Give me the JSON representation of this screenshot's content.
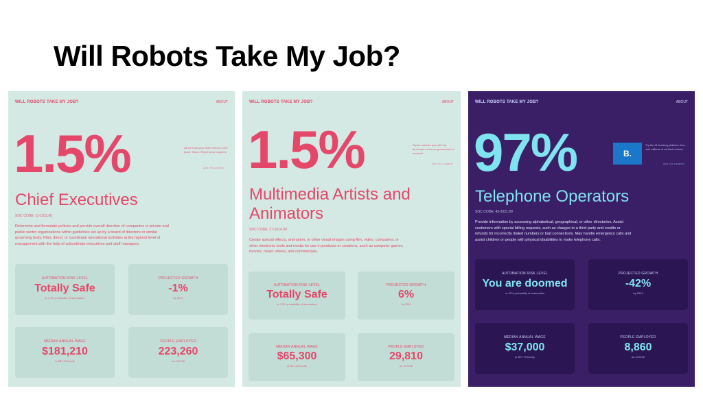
{
  "slide_title": "Will Robots Take My Job?",
  "panels": [
    {
      "brand": "WILL ROBOTS TAKE MY JOB?",
      "about": "ABOUT",
      "percent": "1.5%",
      "ad_text": "All the tools your team needs in one place. Slack: Where work happens.",
      "ad_link": "ADS VIA CARBON",
      "job_title": "Chief Executives",
      "soc_code": "SOC CODE: 11-1011.00",
      "description": "Determine and formulate policies and provide overall direction of companies or private and public sector organizations within guidelines set up by a board of directors or similar governing body. Plan, direct, or coordinate operational activities at the highest level of management with the help of subordinate executives and staff managers.",
      "cards": {
        "risk_label": "AUTOMATION RISK LEVEL",
        "risk_value": "Totally Safe",
        "risk_sub": "or 1.5% probability of automation",
        "growth_label": "PROJECTED GROWTH",
        "growth_value": "-1%",
        "growth_sub": "by 2024",
        "wage_label": "MEDIAN ANNUAL WAGE",
        "wage_value": "$181,210",
        "wage_sub": "or $87.12 hourly",
        "employed_label": "PEOPLE EMPLOYED",
        "employed_value": "223,260",
        "employed_sub": "as of 2016"
      }
    },
    {
      "brand": "WILL ROBOTS TAKE MY JOB?",
      "about": "ABOUT",
      "percent": "1.5%",
      "ad_text": "Toptal matches you with top developers who are guaranteed to succeed.",
      "ad_link": "ADS VIA CARBON",
      "job_title": "Multimedia Artists and Animators",
      "soc_code": "SOC CODE: 27-1014.00",
      "description": "Create special effects, animation, or other visual images using film, video, computers, or other electronic tools and media for use in products or creations, such as computer games, movies, music videos, and commercials.",
      "cards": {
        "risk_label": "AUTOMATION RISK LEVEL",
        "risk_value": "Totally Safe",
        "risk_sub": "or 1.5% probability of automation",
        "growth_label": "PROJECTED GROWTH",
        "growth_value": "6%",
        "growth_sub": "by 2024",
        "wage_label": "MEDIAN ANNUAL WAGE",
        "wage_value": "$65,300",
        "wage_sub": "or $31.40 hourly",
        "employed_label": "PEOPLE EMPLOYED",
        "employed_value": "29,810",
        "employed_sub": "as of 2016"
      }
    },
    {
      "brand": "WILL ROBOTS TAKE MY JOB?",
      "about": "ABOUT",
      "percent": "97%",
      "ad_text": "Try the #1 booking platform, free - with millions of verified reviews.",
      "ad_link": "ADS VIA CARBON",
      "logo_letter": "B.",
      "job_title": "Telephone Operators",
      "soc_code": "SOC CODE: 43-2021.00",
      "description": "Provide information by accessing alphabetical, geographical, or other directories. Assist customers with special billing requests, such as charges to a third party and credits or refunds for incorrectly dialed numbers or bad connections. May handle emergency calls and assist children or people with physical disabilities to make telephone calls.",
      "cards": {
        "risk_label": "AUTOMATION RISK LEVEL",
        "risk_value": "You are doomed",
        "risk_sub": "or 97% probability of automation",
        "growth_label": "PROJECTED GROWTH",
        "growth_value": "-42%",
        "growth_sub": "by 2024",
        "wage_label": "MEDIAN ANNUAL WAGE",
        "wage_value": "$37,000",
        "wage_sub": "or $17.79 hourly",
        "employed_label": "PEOPLE EMPLOYED",
        "employed_value": "8,860",
        "employed_sub": "as of 2016"
      }
    }
  ],
  "colors": {
    "light_bg": "#d4e9e3",
    "light_card": "#c2ddd6",
    "accent_red": "#e5476a",
    "dark_bg": "#3a1f66",
    "dark_card": "#2b1553",
    "accent_cyan": "#7fe4f0",
    "logo_blue": "#1a77c9"
  }
}
